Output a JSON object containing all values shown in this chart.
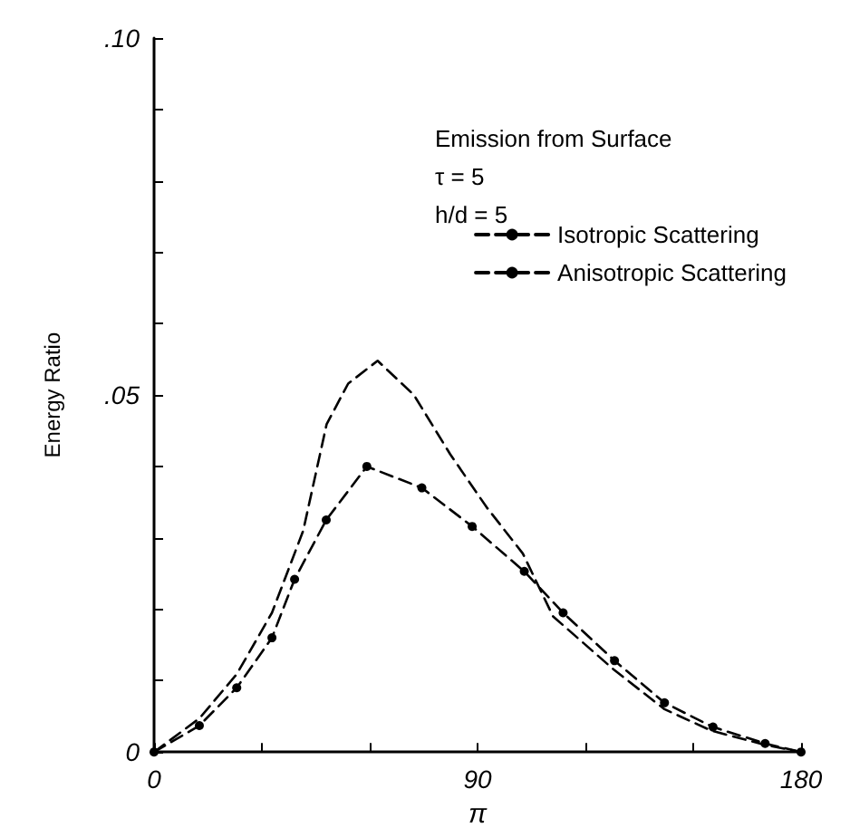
{
  "chart_data": {
    "type": "line",
    "xlabel": "π",
    "ylabel": "Energy Ratio",
    "annotations": [
      "Emission from Surface",
      "τ = 5",
      "h/d = 5"
    ],
    "xlim": [
      0,
      180
    ],
    "xticks": [
      0,
      {
        "value": 30,
        "label": null
      },
      {
        "value": 60,
        "label": null
      },
      90,
      {
        "value": 120,
        "label": null
      },
      {
        "value": 150,
        "label": null
      },
      180
    ],
    "ylim": [
      0,
      0.1
    ],
    "yticks": [
      0,
      {
        "value": 0.01,
        "label": null
      },
      {
        "value": 0.02,
        "label": null
      },
      {
        "value": 0.03,
        "label": null
      },
      {
        "value": 0.04,
        "label": null
      },
      {
        "value": 0.05,
        "label": ".05"
      },
      {
        "value": 0.06,
        "label": null
      },
      {
        "value": 0.07,
        "label": null
      },
      {
        "value": 0.08,
        "label": null
      },
      {
        "value": 0.09,
        "label": null
      },
      {
        "value": 0.1,
        "label": ".10"
      }
    ],
    "grid": false,
    "legend": "top right",
    "series": [
      {
        "name": "Isotropic Scattering",
        "color": "#000000",
        "marker": "circle",
        "line_style": "dashed",
        "x": [
          0,
          12.6,
          23,
          32.8,
          39.1,
          47.9,
          59.2,
          74.5,
          88.5,
          103,
          113.8,
          128.1,
          142,
          155.5,
          170,
          180
        ],
        "values": [
          0,
          0.0037,
          0.009,
          0.016,
          0.0242,
          0.0325,
          0.04,
          0.037,
          0.0316,
          0.0253,
          0.0195,
          0.0128,
          0.0069,
          0.0035,
          0.0012,
          0
        ]
      },
      {
        "name": "Anisotropic Scattering",
        "color": "#000000",
        "marker": "none",
        "line_style": "dashed",
        "x": [
          0,
          12.6,
          23,
          32.8,
          41.5,
          48,
          54,
          62.2,
          72.3,
          82.4,
          92.5,
          102.6,
          111,
          128,
          142,
          155,
          170,
          180
        ],
        "values": [
          0,
          0.0047,
          0.0109,
          0.0195,
          0.031,
          0.0459,
          0.0516,
          0.0548,
          0.05,
          0.0417,
          0.0343,
          0.0278,
          0.019,
          0.0115,
          0.006,
          0.003,
          0.001,
          0
        ]
      }
    ]
  }
}
